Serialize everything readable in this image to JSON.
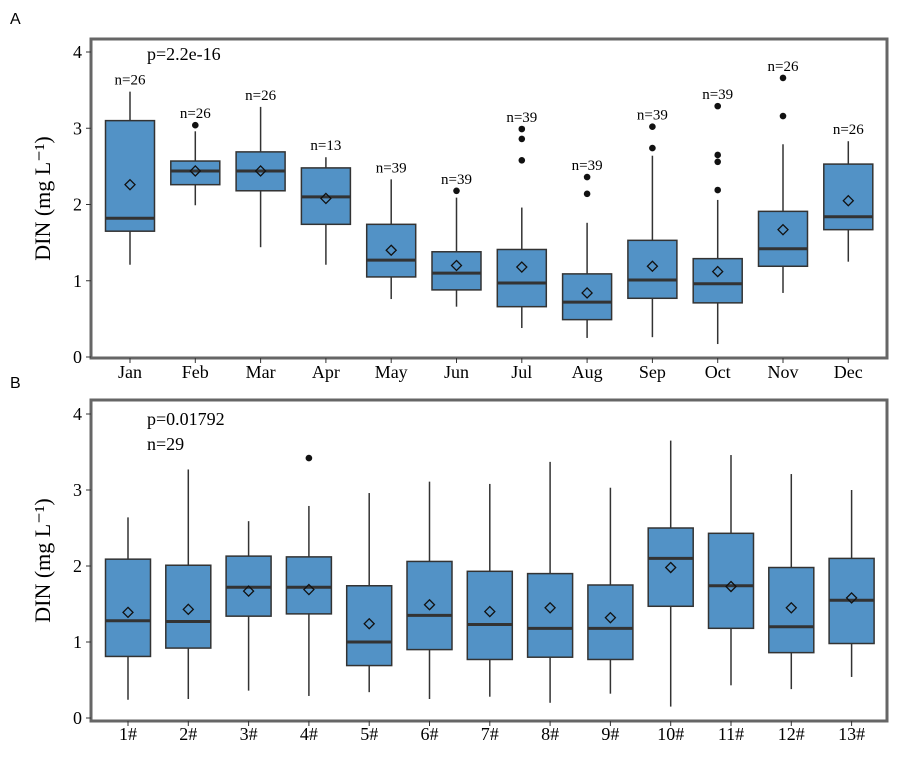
{
  "colors": {
    "box_fill": "#5292c6",
    "box_stroke": "#333333",
    "frame": "#666666",
    "text": "#000000"
  },
  "chart_data": [
    {
      "panel_label": "A",
      "type": "boxplot",
      "ylabel": "DIN (mg L⁻¹)",
      "ylim": [
        0,
        4
      ],
      "yticks": [
        0,
        1,
        2,
        3,
        4
      ],
      "annotation": [
        "p=2.2e-16"
      ],
      "grid": false,
      "categories": [
        "Jan",
        "Feb",
        "Mar",
        "Apr",
        "May",
        "Jun",
        "Jul",
        "Aug",
        "Sep",
        "Oct",
        "Nov",
        "Dec"
      ],
      "n_labels": [
        "n=26",
        "n=26",
        "n=26",
        "n=13",
        "n=39",
        "n=39",
        "n=39",
        "n=39",
        "n=39",
        "n=39",
        "n=26",
        "n=26"
      ],
      "boxes": [
        {
          "low": 1.21,
          "q1": 1.65,
          "median": 1.82,
          "q3": 3.1,
          "high": 3.48,
          "mean": 2.26,
          "outliers": []
        },
        {
          "low": 1.99,
          "q1": 2.26,
          "median": 2.44,
          "q3": 2.57,
          "high": 2.96,
          "mean": 2.44,
          "outliers": [
            3.04
          ]
        },
        {
          "low": 1.44,
          "q1": 2.18,
          "median": 2.44,
          "q3": 2.69,
          "high": 3.28,
          "mean": 2.44,
          "outliers": []
        },
        {
          "low": 1.21,
          "q1": 1.74,
          "median": 2.1,
          "q3": 2.48,
          "high": 2.62,
          "mean": 2.08,
          "outliers": []
        },
        {
          "low": 0.76,
          "q1": 1.05,
          "median": 1.27,
          "q3": 1.74,
          "high": 2.33,
          "mean": 1.4,
          "outliers": []
        },
        {
          "low": 0.66,
          "q1": 0.88,
          "median": 1.1,
          "q3": 1.38,
          "high": 2.09,
          "mean": 1.2,
          "outliers": [
            2.18
          ]
        },
        {
          "low": 0.38,
          "q1": 0.66,
          "median": 0.97,
          "q3": 1.41,
          "high": 1.96,
          "mean": 1.18,
          "outliers": [
            2.58,
            2.86,
            2.99
          ]
        },
        {
          "low": 0.25,
          "q1": 0.49,
          "median": 0.72,
          "q3": 1.09,
          "high": 1.76,
          "mean": 0.84,
          "outliers": [
            2.14,
            2.36
          ]
        },
        {
          "low": 0.26,
          "q1": 0.77,
          "median": 1.01,
          "q3": 1.53,
          "high": 2.64,
          "mean": 1.19,
          "outliers": [
            2.74,
            3.02
          ]
        },
        {
          "low": 0.17,
          "q1": 0.71,
          "median": 0.96,
          "q3": 1.29,
          "high": 2.06,
          "mean": 1.12,
          "outliers": [
            2.19,
            2.56,
            2.65,
            3.29
          ]
        },
        {
          "low": 0.84,
          "q1": 1.19,
          "median": 1.42,
          "q3": 1.91,
          "high": 2.79,
          "mean": 1.67,
          "outliers": [
            3.16,
            3.66
          ]
        },
        {
          "low": 1.25,
          "q1": 1.67,
          "median": 1.84,
          "q3": 2.53,
          "high": 2.83,
          "mean": 2.05,
          "outliers": []
        }
      ]
    },
    {
      "panel_label": "B",
      "type": "boxplot",
      "ylabel": "DIN (mg L⁻¹)",
      "ylim": [
        0,
        4
      ],
      "yticks": [
        0,
        1,
        2,
        3,
        4
      ],
      "annotation": [
        "p=0.01792",
        "n=29"
      ],
      "grid": false,
      "categories": [
        "1#",
        "2#",
        "3#",
        "4#",
        "5#",
        "6#",
        "7#",
        "8#",
        "9#",
        "10#",
        "11#",
        "12#",
        "13#"
      ],
      "n_labels": [],
      "boxes": [
        {
          "low": 0.24,
          "q1": 0.81,
          "median": 1.28,
          "q3": 2.09,
          "high": 2.64,
          "mean": 1.39,
          "outliers": []
        },
        {
          "low": 0.25,
          "q1": 0.92,
          "median": 1.27,
          "q3": 2.01,
          "high": 3.27,
          "mean": 1.43,
          "outliers": []
        },
        {
          "low": 0.36,
          "q1": 1.34,
          "median": 1.72,
          "q3": 2.13,
          "high": 2.59,
          "mean": 1.67,
          "outliers": []
        },
        {
          "low": 0.29,
          "q1": 1.37,
          "median": 1.72,
          "q3": 2.12,
          "high": 2.79,
          "mean": 1.69,
          "outliers": [
            3.42
          ]
        },
        {
          "low": 0.34,
          "q1": 0.69,
          "median": 1.0,
          "q3": 1.74,
          "high": 2.96,
          "mean": 1.24,
          "outliers": []
        },
        {
          "low": 0.25,
          "q1": 0.9,
          "median": 1.35,
          "q3": 2.06,
          "high": 3.11,
          "mean": 1.49,
          "outliers": []
        },
        {
          "low": 0.28,
          "q1": 0.77,
          "median": 1.23,
          "q3": 1.93,
          "high": 3.08,
          "mean": 1.4,
          "outliers": []
        },
        {
          "low": 0.2,
          "q1": 0.8,
          "median": 1.18,
          "q3": 1.9,
          "high": 3.37,
          "mean": 1.45,
          "outliers": []
        },
        {
          "low": 0.32,
          "q1": 0.77,
          "median": 1.18,
          "q3": 1.75,
          "high": 3.03,
          "mean": 1.32,
          "outliers": []
        },
        {
          "low": 0.15,
          "q1": 1.47,
          "median": 2.1,
          "q3": 2.5,
          "high": 3.65,
          "mean": 1.98,
          "outliers": []
        },
        {
          "low": 0.43,
          "q1": 1.18,
          "median": 1.74,
          "q3": 2.43,
          "high": 3.46,
          "mean": 1.73,
          "outliers": []
        },
        {
          "low": 0.38,
          "q1": 0.86,
          "median": 1.2,
          "q3": 1.98,
          "high": 3.21,
          "mean": 1.45,
          "outliers": []
        },
        {
          "low": 0.54,
          "q1": 0.98,
          "median": 1.55,
          "q3": 2.1,
          "high": 3.0,
          "mean": 1.58,
          "outliers": []
        }
      ]
    }
  ]
}
